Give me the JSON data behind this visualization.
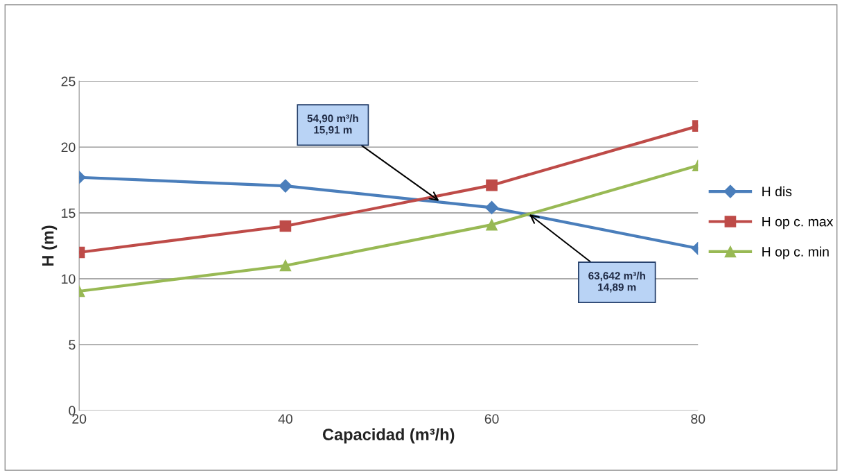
{
  "chart_data": {
    "type": "line",
    "xlabel": "Capacidad (m³/h)",
    "ylabel": "H (m)",
    "x": [
      20,
      40,
      60,
      80
    ],
    "series": [
      {
        "name": "H dis",
        "color": "#4a7ebb",
        "marker": "diamond",
        "values": [
          17.7,
          17.05,
          15.4,
          12.3
        ]
      },
      {
        "name": "H op c. max",
        "color": "#be4b48",
        "marker": "square",
        "values": [
          12.0,
          14.0,
          17.1,
          21.6
        ]
      },
      {
        "name": "H op c. min",
        "color": "#98b954",
        "marker": "triangle",
        "values": [
          9.05,
          11.0,
          14.1,
          18.6
        ]
      }
    ],
    "xlim": [
      20,
      80
    ],
    "xticks": [
      20,
      40,
      60,
      80
    ],
    "ylim": [
      0,
      25
    ],
    "yticks": [
      0,
      5,
      10,
      15,
      20,
      25
    ],
    "grid": "y",
    "legend": "right",
    "line_style": "solid",
    "annotations": [
      {
        "text": "54,90 m³/h\n15,91 m",
        "x": 54.9,
        "y": 15.91
      },
      {
        "text": "63,642 m³/h\n14,89 m",
        "x": 63.642,
        "y": 14.89
      }
    ]
  }
}
